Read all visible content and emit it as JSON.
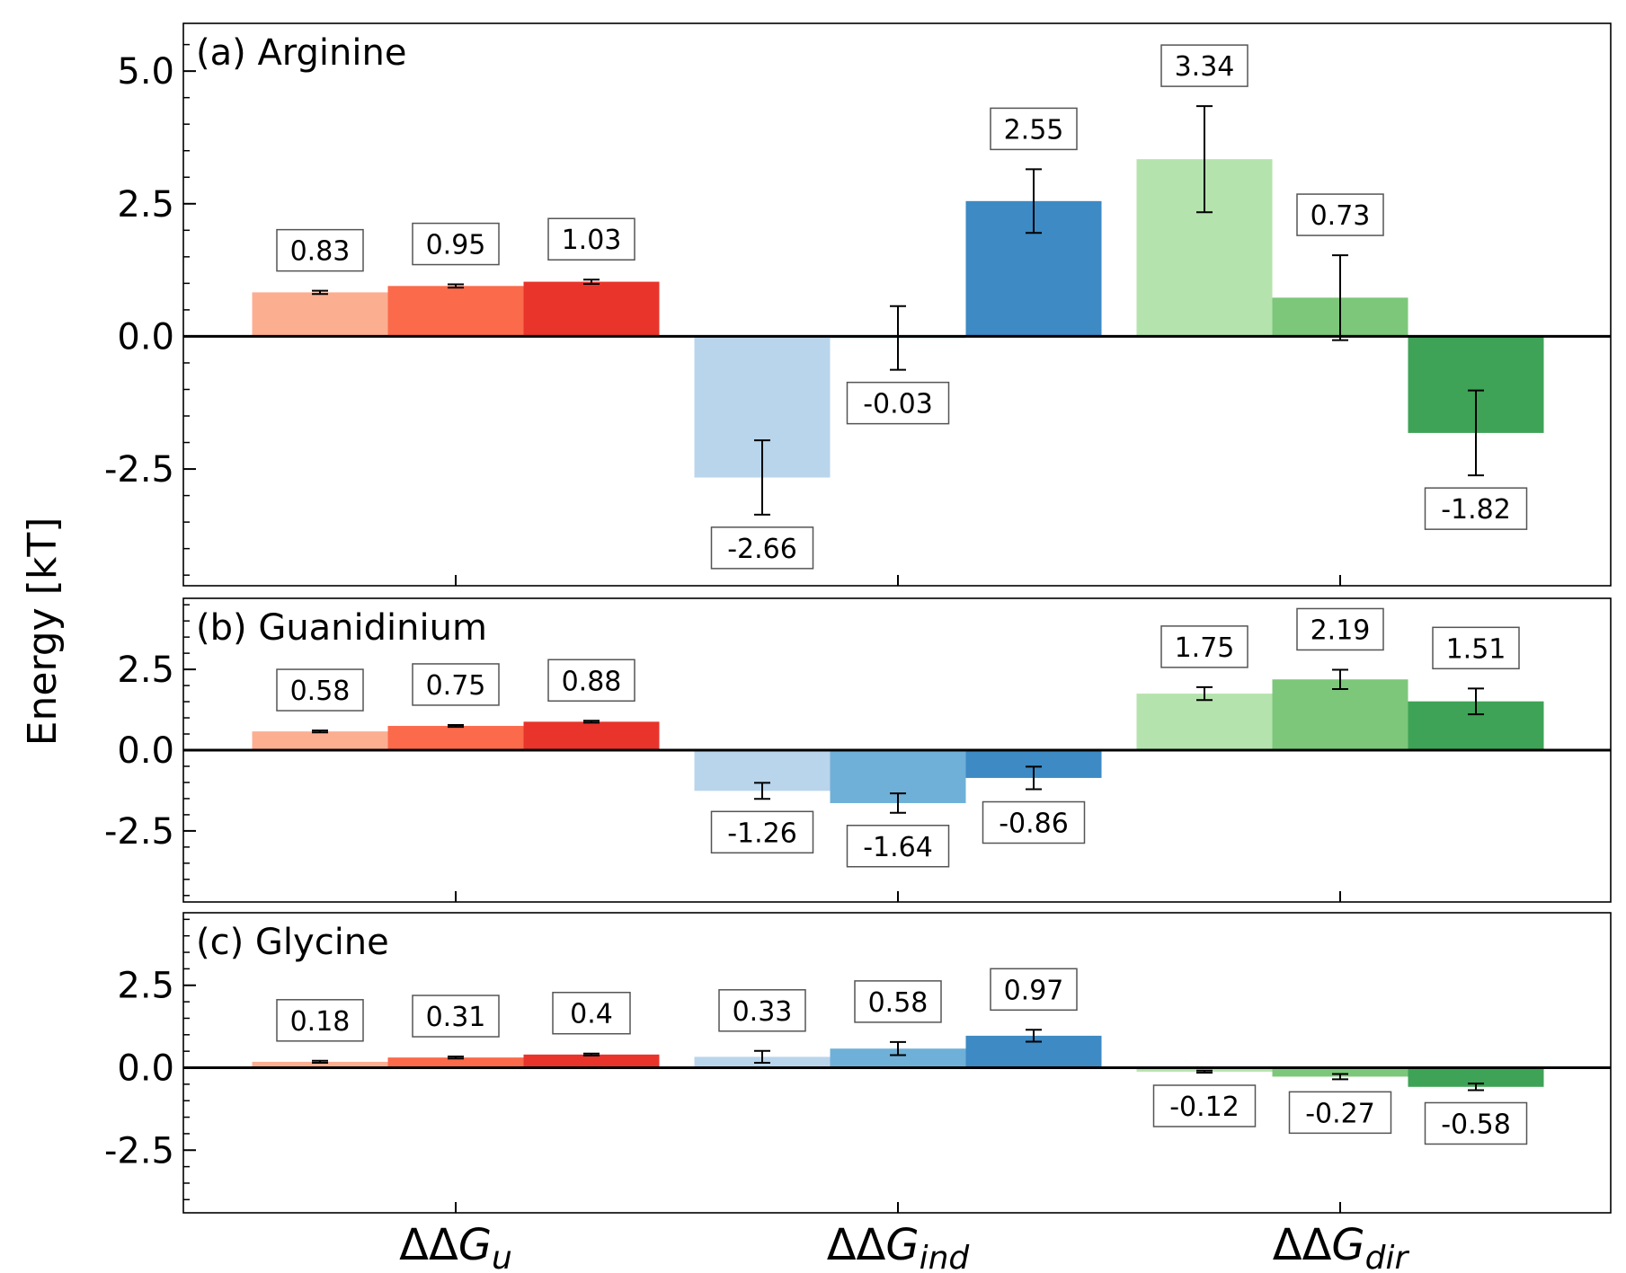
{
  "chart_data": {
    "type": "bar",
    "ylabel": "Energy [kT]",
    "categories": [
      {
        "delta": "ΔΔG",
        "sub": "u"
      },
      {
        "delta": "ΔΔG",
        "sub": "ind"
      },
      {
        "delta": "ΔΔG",
        "sub": "dir"
      }
    ],
    "category_colors": [
      [
        "#fcae91",
        "#fb6a4a",
        "#e8342b"
      ],
      [
        "#b9d5ec",
        "#6fb0d8",
        "#3d8ac4"
      ],
      [
        "#b5e3ad",
        "#7cc77a",
        "#3ea356"
      ]
    ],
    "panels": [
      {
        "title": "(a) Arginine",
        "ylim": [
          -4.7,
          5.9
        ],
        "ticks": [
          5.0,
          2.5,
          0.0,
          -2.5
        ],
        "tick_labels": [
          "5.0",
          "2.5",
          "0.0",
          "-2.5"
        ],
        "values": [
          [
            0.83,
            0.95,
            1.03
          ],
          [
            -2.66,
            -0.03,
            2.55
          ],
          [
            3.34,
            0.73,
            -1.82
          ]
        ],
        "labels": [
          [
            "0.83",
            "0.95",
            "1.03"
          ],
          [
            "-2.66",
            "-0.03",
            "2.55"
          ],
          [
            "3.34",
            "0.73",
            "-1.82"
          ]
        ],
        "errors": [
          [
            0.03,
            0.03,
            0.04
          ],
          [
            0.7,
            0.6,
            0.6
          ],
          [
            1.0,
            0.8,
            0.8
          ]
        ]
      },
      {
        "title": "(b) Guanidinium",
        "ylim": [
          -4.7,
          4.7
        ],
        "ticks": [
          2.5,
          0.0,
          -2.5
        ],
        "tick_labels": [
          "2.5",
          "0.0",
          "-2.5"
        ],
        "values": [
          [
            0.58,
            0.75,
            0.88
          ],
          [
            -1.26,
            -1.64,
            -0.86
          ],
          [
            1.75,
            2.19,
            1.51
          ]
        ],
        "labels": [
          [
            "0.58",
            "0.75",
            "0.88"
          ],
          [
            "-1.26",
            "-1.64",
            "-0.86"
          ],
          [
            "1.75",
            "2.19",
            "1.51"
          ]
        ],
        "errors": [
          [
            0.03,
            0.03,
            0.03
          ],
          [
            0.25,
            0.3,
            0.35
          ],
          [
            0.2,
            0.3,
            0.4
          ]
        ]
      },
      {
        "title": "(c) Glycine",
        "ylim": [
          -4.4,
          4.7
        ],
        "ticks": [
          2.5,
          0.0,
          -2.5
        ],
        "tick_labels": [
          "2.5",
          "0.0",
          "-2.5"
        ],
        "values": [
          [
            0.18,
            0.31,
            0.4
          ],
          [
            0.33,
            0.58,
            0.97
          ],
          [
            -0.12,
            -0.27,
            -0.58
          ]
        ],
        "labels": [
          [
            "0.18",
            "0.31",
            "0.4"
          ],
          [
            "0.33",
            "0.58",
            "0.97"
          ],
          [
            "-0.12",
            "-0.27",
            "-0.58"
          ]
        ],
        "errors": [
          [
            0.03,
            0.03,
            0.03
          ],
          [
            0.18,
            0.2,
            0.18
          ],
          [
            0.03,
            0.08,
            0.1
          ]
        ]
      }
    ]
  }
}
